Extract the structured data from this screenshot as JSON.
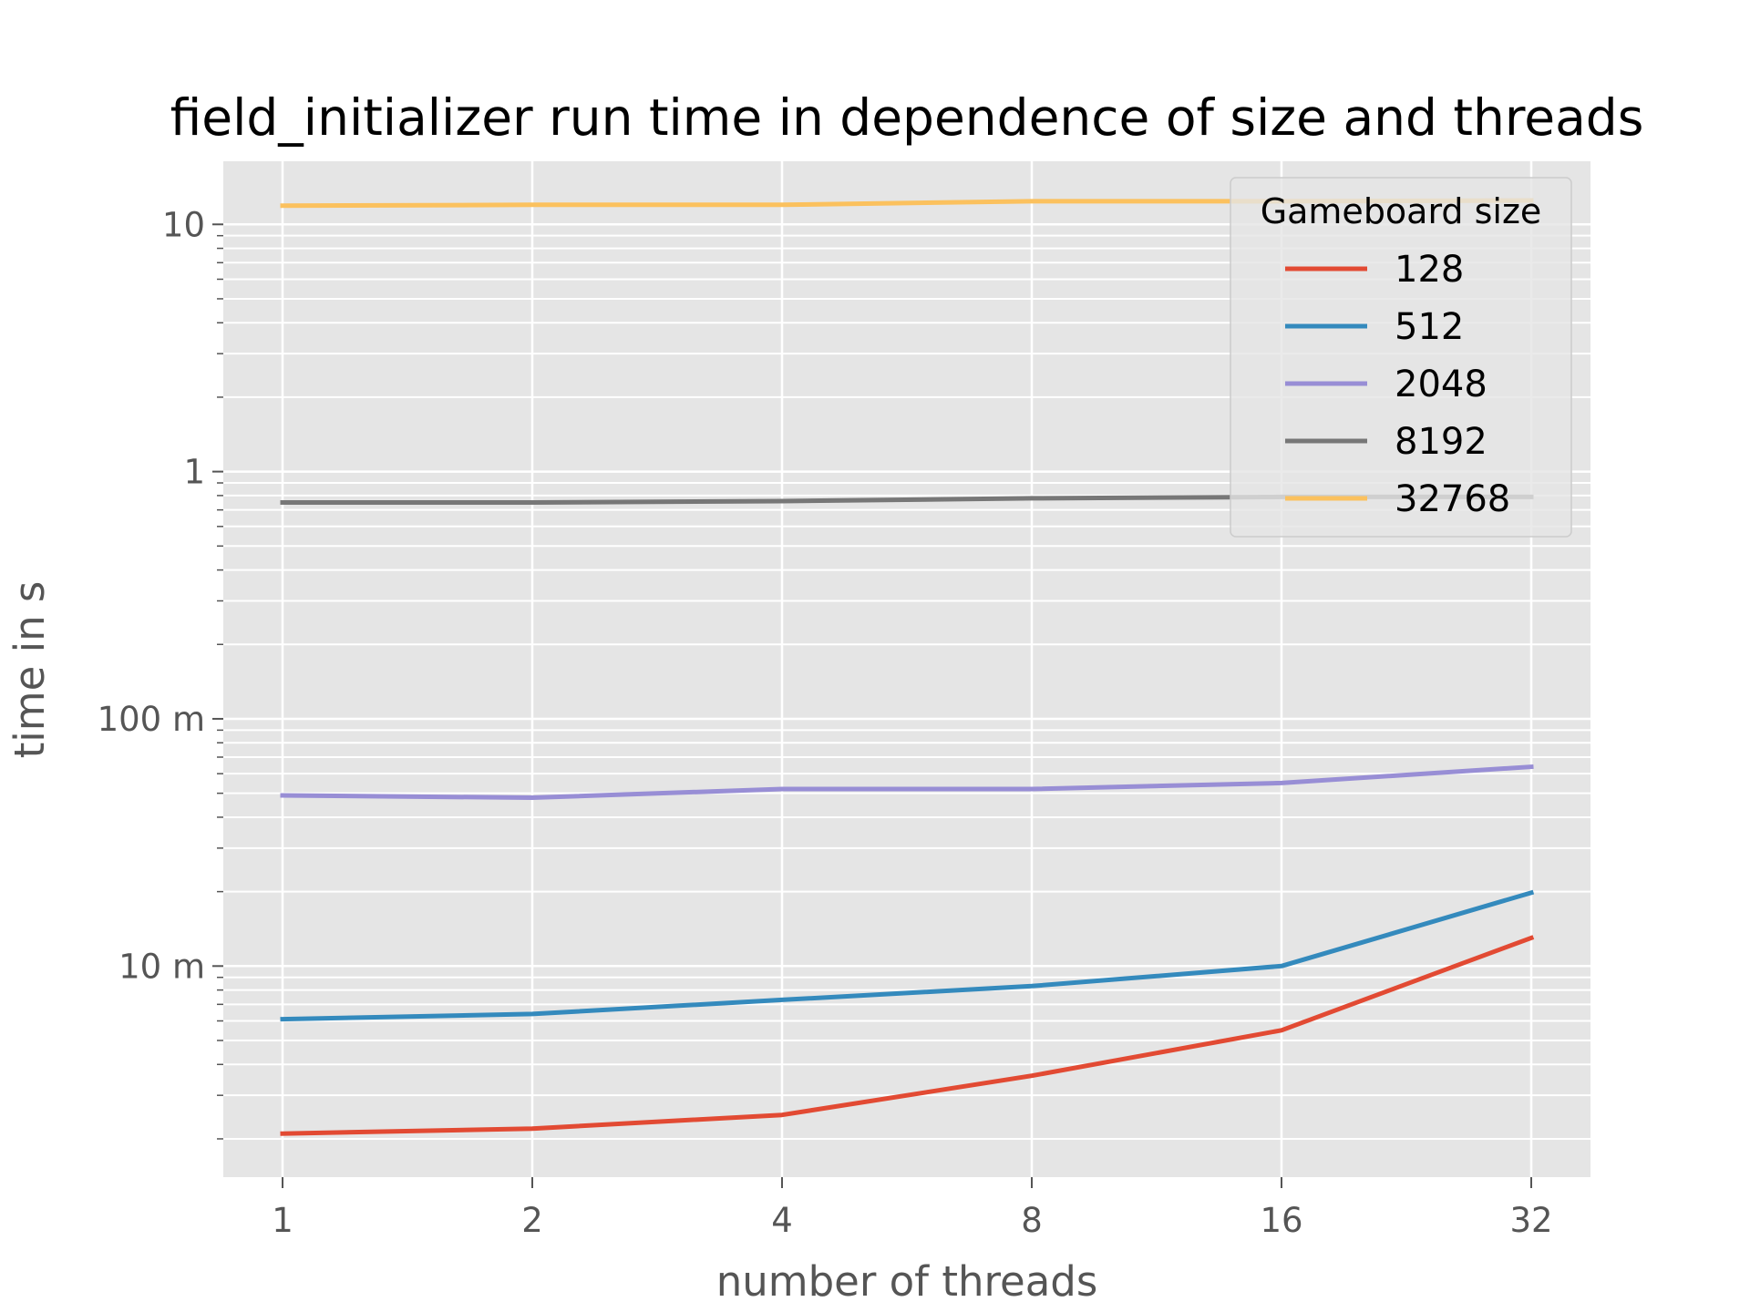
{
  "chart_data": {
    "type": "line",
    "title": "field_initializer run time in dependence of size and threads",
    "xlabel": "number of threads",
    "ylabel": "time in s",
    "x_scale": "log2",
    "y_scale": "log",
    "categories": [
      "1",
      "2",
      "4",
      "8",
      "16",
      "32"
    ],
    "x": [
      1,
      2,
      4,
      8,
      16,
      32
    ],
    "ylim": [
      0.0014,
      18
    ],
    "y_ticks": [
      {
        "value": 0.01,
        "label": "10 m"
      },
      {
        "value": 0.1,
        "label": "100 m"
      },
      {
        "value": 1,
        "label": "1"
      },
      {
        "value": 10,
        "label": "10"
      }
    ],
    "grid": true,
    "legend": {
      "title": "Gameboard size",
      "position": "top-right"
    },
    "series": [
      {
        "name": "128",
        "color": "#E24A33",
        "values": [
          0.0021,
          0.0022,
          0.0025,
          0.0036,
          0.0055,
          0.013
        ]
      },
      {
        "name": "512",
        "color": "#348ABD",
        "values": [
          0.0061,
          0.0064,
          0.0073,
          0.0083,
          0.01,
          0.0198
        ]
      },
      {
        "name": "2048",
        "color": "#988ED5",
        "values": [
          0.049,
          0.048,
          0.052,
          0.052,
          0.055,
          0.064
        ]
      },
      {
        "name": "8192",
        "color": "#777777",
        "values": [
          0.75,
          0.75,
          0.76,
          0.78,
          0.79,
          0.79
        ]
      },
      {
        "name": "32768",
        "color": "#FBC15E",
        "values": [
          11.9,
          12.0,
          12.0,
          12.4,
          12.4,
          12.5
        ]
      }
    ]
  }
}
